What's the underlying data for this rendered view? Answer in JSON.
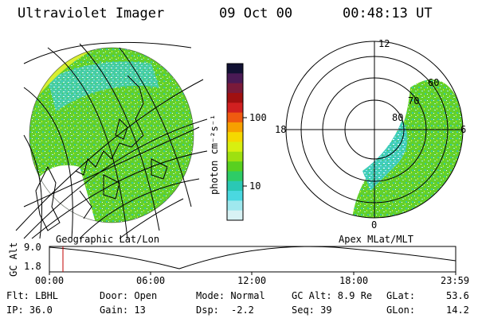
{
  "header": {
    "title": "Ultraviolet Imager",
    "date": "09 Oct 00",
    "time": "00:48:13 UT"
  },
  "colorbar": {
    "label": "photon cm⁻²s⁻¹",
    "ticks": [
      "100",
      "10"
    ],
    "colors": [
      "#111133",
      "#4a1a55",
      "#7a1a3a",
      "#a01010",
      "#d02020",
      "#ef5a10",
      "#f7a000",
      "#f5d800",
      "#d8ef10",
      "#9ee010",
      "#58d020",
      "#2ecc66",
      "#2ac8b4",
      "#4ad8e0",
      "#9fe8ee",
      "#d8f2f4"
    ]
  },
  "polar_plot": {
    "labels": {
      "top": "12",
      "left": "18",
      "right": "6",
      "bottom": "0"
    },
    "ring_labels": [
      "60",
      "70",
      "80"
    ]
  },
  "panels": {
    "geo_label": "Geographic Lat/Lon",
    "apex_label": "Apex MLat/MLT"
  },
  "altitude_plot": {
    "ylabel": "GC Alt",
    "yticks": [
      "9.0",
      "1.8"
    ],
    "xticks": [
      "00:00",
      "06:00",
      "12:00",
      "18:00",
      "23:59"
    ],
    "marker_time": "00:48"
  },
  "info": {
    "flt": "Flt: LBHL",
    "ip": "IP: 36.0",
    "door": "Door: Open",
    "gain": "Gain: 13",
    "mode": "Mode: Normal",
    "dsp_label": "Dsp:",
    "dsp_value": "-2.2",
    "gcalt": "GC Alt: 8.9 Re",
    "seq": "Seq: 39",
    "glat_label": "GLat:",
    "glat_value": "53.6",
    "glon_label": "GLon:",
    "glon_value": "14.2"
  },
  "theme": {
    "aurora_green": "#60d028",
    "aurora_cyan": "#3fd6c8",
    "aurora_yellow": "#d8ef30",
    "marker_red": "#c00000"
  }
}
